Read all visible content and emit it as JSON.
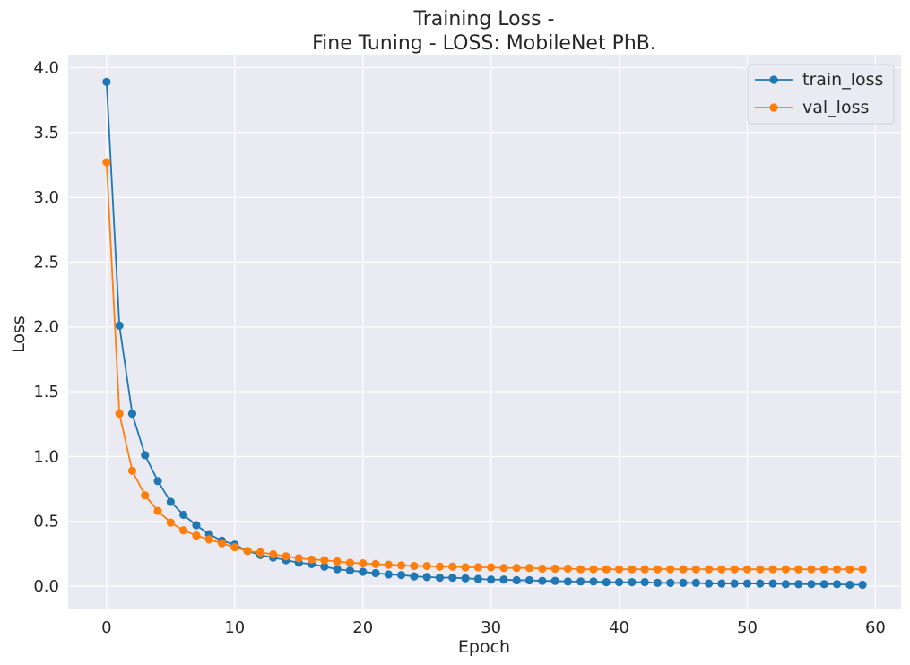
{
  "chart_data": {
    "type": "line",
    "title_line1": "Training Loss -",
    "title_line2": "Fine Tuning - LOSS: MobileNet PhB.",
    "xlabel": "Epoch",
    "ylabel": "Loss",
    "xlim": [
      -3,
      62
    ],
    "ylim": [
      -0.18,
      4.1
    ],
    "xticks": [
      0,
      10,
      20,
      30,
      40,
      50,
      60
    ],
    "yticks": [
      0.0,
      0.5,
      1.0,
      1.5,
      2.0,
      2.5,
      3.0,
      3.5,
      4.0
    ],
    "xtick_labels": [
      "0",
      "10",
      "20",
      "30",
      "40",
      "50",
      "60"
    ],
    "ytick_labels": [
      "0.0",
      "0.5",
      "1.0",
      "1.5",
      "2.0",
      "2.5",
      "3.0",
      "3.5",
      "4.0"
    ],
    "grid": true,
    "legend_position": "top-right",
    "background_color": "#eaeaf2",
    "grid_color": "#ffffff",
    "x": [
      0,
      1,
      2,
      3,
      4,
      5,
      6,
      7,
      8,
      9,
      10,
      11,
      12,
      13,
      14,
      15,
      16,
      17,
      18,
      19,
      20,
      21,
      22,
      23,
      24,
      25,
      26,
      27,
      28,
      29,
      30,
      31,
      32,
      33,
      34,
      35,
      36,
      37,
      38,
      39,
      40,
      41,
      42,
      43,
      44,
      45,
      46,
      47,
      48,
      49,
      50,
      51,
      52,
      53,
      54,
      55,
      56,
      57,
      58,
      59
    ],
    "series": [
      {
        "name": "train_loss",
        "color": "#1f77b4",
        "values": [
          3.89,
          2.01,
          1.33,
          1.01,
          0.81,
          0.65,
          0.55,
          0.47,
          0.4,
          0.35,
          0.32,
          0.27,
          0.24,
          0.22,
          0.2,
          0.18,
          0.17,
          0.15,
          0.13,
          0.12,
          0.11,
          0.1,
          0.09,
          0.085,
          0.075,
          0.07,
          0.065,
          0.065,
          0.06,
          0.055,
          0.05,
          0.05,
          0.045,
          0.045,
          0.04,
          0.04,
          0.035,
          0.035,
          0.035,
          0.03,
          0.03,
          0.03,
          0.03,
          0.025,
          0.025,
          0.025,
          0.025,
          0.02,
          0.02,
          0.02,
          0.02,
          0.02,
          0.02,
          0.015,
          0.015,
          0.015,
          0.015,
          0.015,
          0.01,
          0.01
        ]
      },
      {
        "name": "val_loss",
        "color": "#ff7f0e",
        "values": [
          3.27,
          1.33,
          0.89,
          0.7,
          0.58,
          0.49,
          0.43,
          0.39,
          0.36,
          0.33,
          0.3,
          0.27,
          0.26,
          0.245,
          0.23,
          0.215,
          0.205,
          0.2,
          0.19,
          0.18,
          0.175,
          0.17,
          0.165,
          0.16,
          0.155,
          0.155,
          0.15,
          0.15,
          0.145,
          0.145,
          0.145,
          0.14,
          0.14,
          0.14,
          0.135,
          0.135,
          0.135,
          0.13,
          0.13,
          0.13,
          0.13,
          0.13,
          0.13,
          0.13,
          0.13,
          0.13,
          0.13,
          0.13,
          0.13,
          0.13,
          0.13,
          0.13,
          0.13,
          0.13,
          0.13,
          0.13,
          0.13,
          0.13,
          0.13,
          0.13
        ]
      }
    ]
  }
}
